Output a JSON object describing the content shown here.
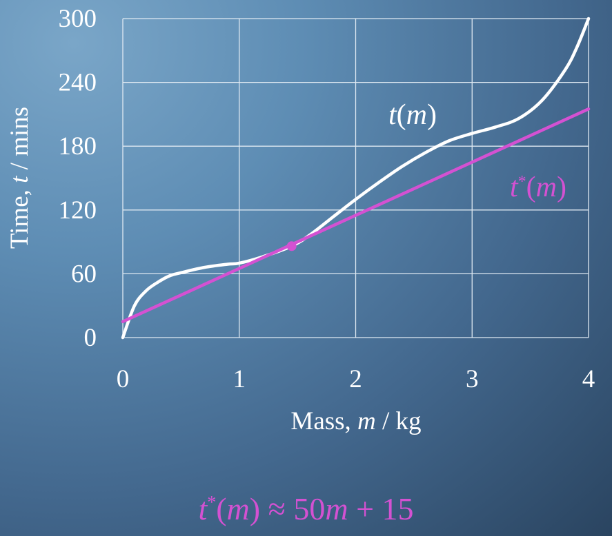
{
  "chart_data": {
    "type": "line",
    "xlabel_prefix": "Mass, ",
    "xlabel_var": "m",
    "xlabel_suffix": " / kg",
    "ylabel_prefix": "Time, ",
    "ylabel_var": "t",
    "ylabel_suffix": " / mins",
    "xlim": [
      0,
      4
    ],
    "ylim": [
      0,
      300
    ],
    "xticks": [
      0,
      1,
      2,
      3,
      4
    ],
    "yticks": [
      0,
      60,
      120,
      180,
      240,
      300
    ],
    "grid": true,
    "series": [
      {
        "name": "t(m)",
        "color": "#ffffff",
        "x": [
          0,
          0.1,
          0.2,
          0.3,
          0.4,
          0.5,
          0.7,
          0.9,
          1.0,
          1.2,
          1.45,
          1.6,
          1.8,
          2.0,
          2.2,
          2.4,
          2.6,
          2.8,
          3.0,
          3.2,
          3.4,
          3.6,
          3.8,
          3.9,
          4.0
        ],
        "y": [
          0,
          30,
          44,
          52,
          58,
          61,
          66,
          69,
          70,
          76,
          86,
          96,
          113,
          130,
          146,
          161,
          174,
          185,
          192,
          198,
          206,
          223,
          252,
          273,
          300
        ]
      },
      {
        "name": "t*(m)",
        "color": "#d451d2",
        "x": [
          0,
          4
        ],
        "y": [
          15,
          215
        ]
      }
    ],
    "point": {
      "x": 1.45,
      "y": 86,
      "color": "#d451d2"
    },
    "series_labels": [
      {
        "base": "t",
        "sup": "",
        "arg": "m",
        "color": "#ffffff"
      },
      {
        "base": "t",
        "sup": "*",
        "arg": "m",
        "color": "#d451d2"
      }
    ]
  },
  "formula": {
    "lhs_var": "t",
    "lhs_sup": "*",
    "lhs_arg": "m",
    "rhs": "≈ 50",
    "rhs_var": "m",
    "rhs_tail": " + 15"
  }
}
